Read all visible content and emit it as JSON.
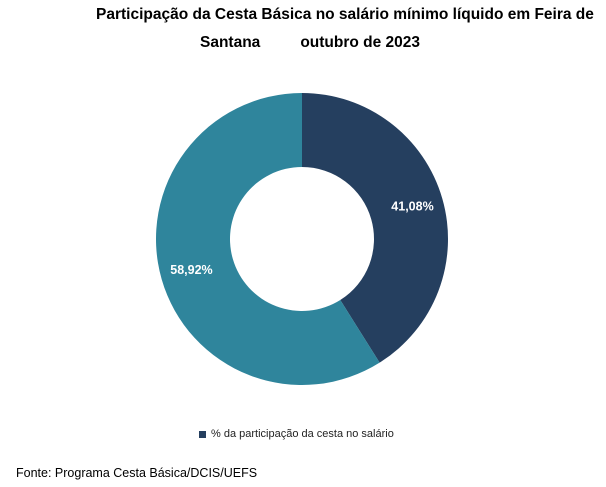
{
  "title": {
    "line1": "Participação da Cesta Básica no salário mínimo líquido em Feira de",
    "line2_a": "Santana",
    "line2_b": "outubro de 2023"
  },
  "chart_data": {
    "type": "pie",
    "donut": true,
    "slices": [
      {
        "label": "41,08%",
        "value": 41.08,
        "color": "#253f5f"
      },
      {
        "label": "58,92%",
        "value": 58.92,
        "color": "#2f859c"
      }
    ],
    "legend": {
      "position": "bottom",
      "entries": [
        {
          "name": "% da participação da cesta no salário",
          "color": "#253f5f"
        }
      ]
    }
  },
  "source": "Fonte: Programa Cesta Básica/DCIS/UEFS"
}
